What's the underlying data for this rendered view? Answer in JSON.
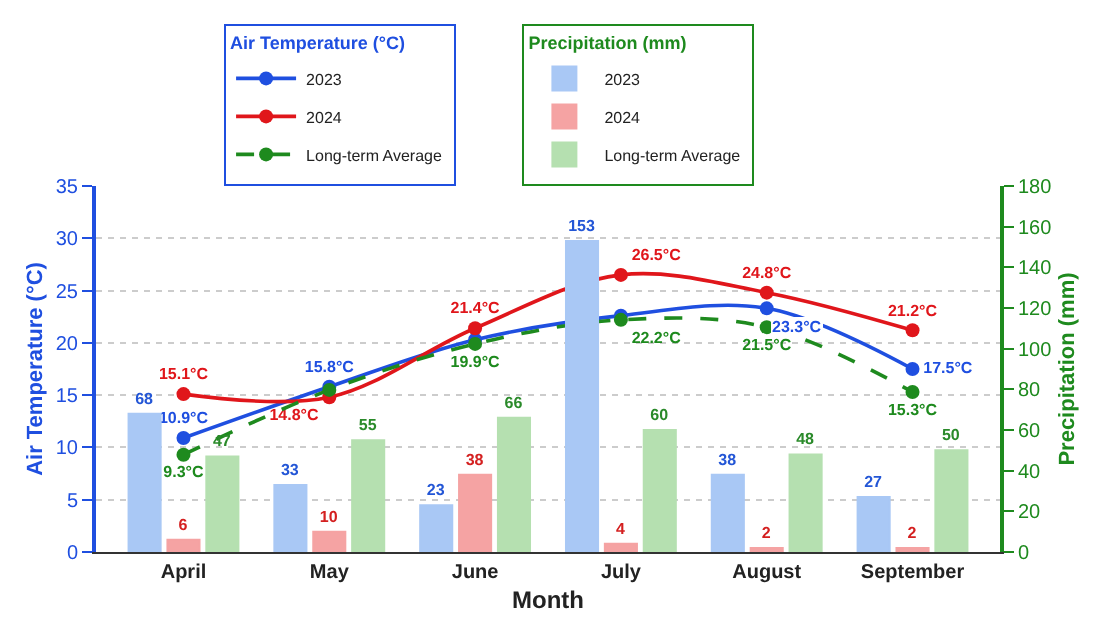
{
  "chart_data": {
    "type": "bar",
    "xlabel": "Month",
    "ylabel": "Air Temperature (°C)",
    "y2label": "Precipitation (mm)",
    "legend_title": [
      "Air Temperature (°C)",
      "Precipitation (mm)"
    ],
    "categories": [
      "April",
      "May",
      "June",
      "July",
      "August",
      "September"
    ],
    "ylim": [
      0,
      35
    ],
    "yticks": [
      0,
      5,
      10,
      15,
      20,
      25,
      30,
      35
    ],
    "y2lim": [
      0,
      180
    ],
    "y2ticks": [
      0,
      20,
      40,
      60,
      80,
      100,
      120,
      140,
      160,
      180
    ],
    "grid": "y",
    "legend": "top",
    "marker": "circle",
    "series": [
      {
        "name": "2023",
        "type": "line",
        "color": "#1f4fe0",
        "values": [
          10.9,
          15.8,
          20.3,
          22.6,
          23.3,
          17.5
        ],
        "value_labels": [
          "10.9°C",
          "15.8°C",
          null,
          null,
          "23.3°C",
          "17.5°C"
        ]
      },
      {
        "name": "2024",
        "type": "line",
        "color": "#e0161b",
        "values": [
          15.1,
          14.8,
          21.4,
          26.5,
          24.8,
          21.2
        ],
        "value_labels": [
          "15.1°C",
          "14.8°C",
          "21.4°C",
          "26.5°C",
          "24.8°C",
          "21.2°C"
        ]
      },
      {
        "name": "Long-term Average",
        "type": "line",
        "line_style": "dashed",
        "color": "#1e8a1e",
        "values": [
          9.3,
          15.5,
          19.9,
          22.2,
          21.5,
          15.3
        ],
        "value_labels": [
          "9.3°C",
          null,
          "19.9°C",
          "22.2°C",
          "21.5°C",
          "15.3°C"
        ]
      },
      {
        "name": "2023",
        "axis": "y2",
        "color": "#a9c8f5",
        "values": [
          68,
          33,
          23,
          153,
          38,
          27
        ],
        "value_labels": [
          "68",
          "33",
          "23",
          "153",
          "38",
          "27"
        ]
      },
      {
        "name": "2024",
        "axis": "y2",
        "color": "#f5a3a3",
        "values": [
          6,
          10,
          38,
          4,
          2,
          2
        ],
        "value_labels": [
          "6",
          "10",
          "38",
          "4",
          "2",
          "2"
        ]
      },
      {
        "name": "Long-term Average",
        "axis": "y2",
        "color": "#b5e0b0",
        "values": [
          47,
          55,
          66,
          60,
          48,
          50
        ],
        "value_labels": [
          "47",
          "55",
          "66",
          "60",
          "48",
          "50"
        ]
      }
    ]
  }
}
